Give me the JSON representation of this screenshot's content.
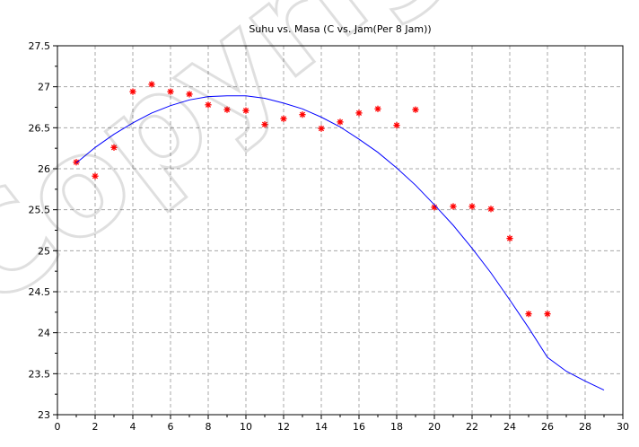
{
  "chart_data": {
    "type": "scatter",
    "title": "Suhu vs. Masa (C vs. Jam(Per 8 Jam))",
    "xlabel": "",
    "ylabel": "",
    "xlim": [
      0,
      30
    ],
    "ylim": [
      23,
      27.5
    ],
    "xticks": [
      0,
      2,
      4,
      6,
      8,
      10,
      12,
      14,
      16,
      18,
      20,
      22,
      24,
      26,
      28,
      30
    ],
    "yticks": [
      23,
      23.5,
      24,
      24.5,
      25,
      25.5,
      26,
      26.5,
      27,
      27.5
    ],
    "ytick_labels": [
      "23",
      "23.5",
      "24",
      "24.5",
      "25",
      "25.5",
      "26",
      "26.5",
      "27",
      "27.5"
    ],
    "grid": true,
    "series": [
      {
        "kind": "points",
        "marker": "asterisk",
        "color": "#ff0000",
        "x": [
          1,
          2,
          3,
          4,
          5,
          6,
          7,
          8,
          9,
          10,
          11,
          12,
          13,
          14,
          15,
          16,
          17,
          18,
          19,
          20,
          21,
          22,
          23,
          24,
          25,
          26
        ],
        "y": [
          26.08,
          25.91,
          26.26,
          26.94,
          27.03,
          26.94,
          26.91,
          26.78,
          26.72,
          26.71,
          26.54,
          26.61,
          26.66,
          26.49,
          26.57,
          26.68,
          26.73,
          26.53,
          26.72,
          25.53,
          25.54,
          25.54,
          25.51,
          25.15,
          24.23,
          24.23
        ]
      },
      {
        "kind": "curve",
        "color": "#0000ff",
        "x": [
          1,
          2,
          3,
          4,
          5,
          6,
          7,
          8,
          9,
          10,
          11,
          12,
          13,
          14,
          15,
          16,
          17,
          18,
          19,
          20,
          21,
          22,
          23,
          24,
          25,
          26,
          27,
          28,
          29
        ],
        "y": [
          26.07,
          26.26,
          26.42,
          26.56,
          26.68,
          26.77,
          26.84,
          26.88,
          26.89,
          26.89,
          26.86,
          26.8,
          26.73,
          26.63,
          26.51,
          26.36,
          26.2,
          26.01,
          25.8,
          25.56,
          25.31,
          25.03,
          24.73,
          24.4,
          24.06,
          23.7,
          23.53,
          23.41,
          23.3
        ]
      }
    ],
    "watermark": "Copyright"
  }
}
